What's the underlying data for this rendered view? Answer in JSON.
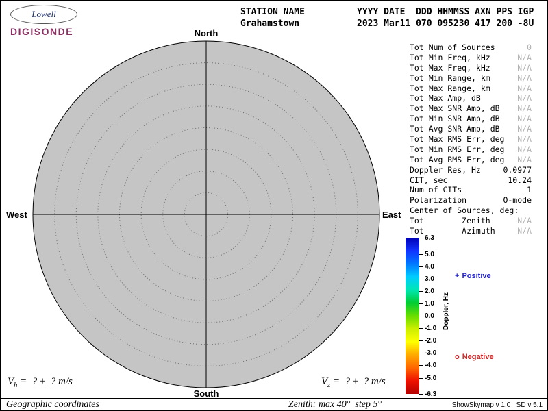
{
  "logo": {
    "brand": "Lowell",
    "product": "DIGISONDE"
  },
  "header": {
    "station_label": "STATION NAME",
    "station_value": "Grahamstown",
    "fields_label": "YYYY DATE  DDD HHMMSS AXN PPS IGP",
    "fields_value": "2023 Mar11 070 095230 417 200 -8U"
  },
  "compass": {
    "north": "North",
    "south": "South",
    "east": "East",
    "west": "West"
  },
  "polar": {
    "max_zenith_deg": 40,
    "step_deg": 5,
    "num_sources": 0
  },
  "stats": {
    "rows": [
      {
        "label": "Tot Num of Sources",
        "value": "0"
      },
      {
        "label": "Tot Min Freq, kHz",
        "value": "N/A"
      },
      {
        "label": "Tot Max Freq, kHz",
        "value": "N/A"
      },
      {
        "label": "Tot Min Range, km",
        "value": "N/A"
      },
      {
        "label": "Tot Max Range, km",
        "value": "N/A"
      },
      {
        "label": "Tot Max Amp, dB",
        "value": "N/A"
      },
      {
        "label": "Tot Max SNR Amp, dB",
        "value": "N/A"
      },
      {
        "label": "Tot Min SNR Amp, dB",
        "value": "N/A"
      },
      {
        "label": "Tot Avg SNR Amp, dB",
        "value": "N/A"
      },
      {
        "label": "Tot Max RMS Err, deg",
        "value": "N/A"
      },
      {
        "label": "Tot Min RMS Err, deg",
        "value": "N/A"
      },
      {
        "label": "Tot Avg RMS Err, deg",
        "value": "N/A"
      },
      {
        "label": "Doppler Res, Hz",
        "value": "0.0977"
      },
      {
        "label": "CIT, sec",
        "value": "10.24"
      },
      {
        "label": "Num of CITs",
        "value": "1"
      },
      {
        "label": "Polarization",
        "value": "O-mode"
      },
      {
        "label": "Center of Sources, deg:",
        "value": ""
      },
      {
        "label": "Tot        Zenith",
        "value": "N/A"
      },
      {
        "label": "Tot        Azimuth",
        "value": "N/A"
      }
    ]
  },
  "colorbar": {
    "title": "Doppler, Hz",
    "ticks": [
      "6.3",
      "5.0",
      "4.0",
      "3.0",
      "2.0",
      "1.0",
      "0.0",
      "-1.0",
      "-2.0",
      "-3.0",
      "-4.0",
      "-5.0",
      "-6.3"
    ],
    "colormap": [
      "#0000b4",
      "#1133ff",
      "#0077ff",
      "#00ccff",
      "#00e6b4",
      "#00cc33",
      "#66dd00",
      "#ccee00",
      "#ffff00",
      "#ffaa00",
      "#ff6600",
      "#ee1100",
      "#b40000"
    ],
    "positive": {
      "marker": "+",
      "label": "Positive",
      "color": "#2222cc"
    },
    "negative": {
      "marker": "o",
      "label": "Negative",
      "color": "#cc2222"
    }
  },
  "footer": {
    "vh": {
      "prefix": "V",
      "sub": "h",
      "rest": " =  ? ±  ? m/s"
    },
    "vz": {
      "prefix": "V",
      "sub": "z",
      "rest": " =  ? ±  ? m/s"
    },
    "coords": "Geographic coordinates",
    "zenith_info": "Zenith: max 40°  step 5°",
    "credit": "ShowSkymap v 1.0   SD v 5.1"
  }
}
